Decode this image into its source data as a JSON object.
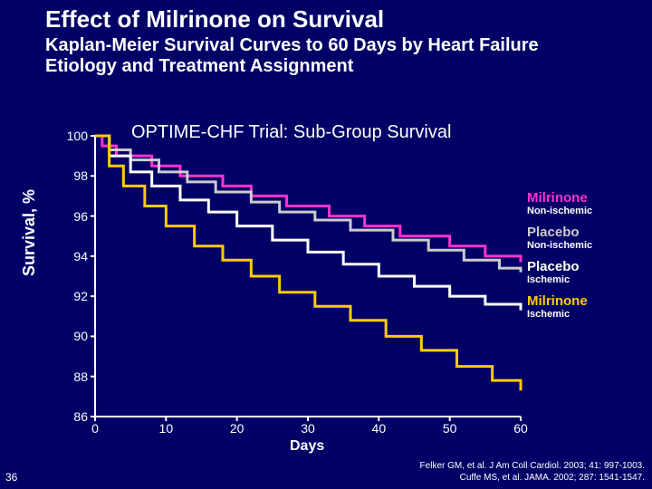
{
  "slide_number": "36",
  "title": "Effect of Milrinone on Survival",
  "subtitle": "Kaplan-Meier Survival Curves to 60 Days by Heart Failure Etiology and Treatment Assignment",
  "chart": {
    "type": "line-step",
    "title": "OPTIME-CHF Trial: Sub-Group Survival",
    "xlabel": "Days",
    "ylabel": "Survival, %",
    "xlim": [
      0,
      60
    ],
    "ylim": [
      86,
      100
    ],
    "xtick_step": 10,
    "ytick_step": 2,
    "xticks": [
      0,
      10,
      20,
      30,
      40,
      50,
      60
    ],
    "yticks": [
      86,
      88,
      90,
      92,
      94,
      96,
      98,
      100
    ],
    "background_color": "#000066",
    "axis_color": "#ffffff",
    "tick_fontsize": 14,
    "label_fontsize": 18,
    "title_fontsize": 20,
    "line_width": 3,
    "series": [
      {
        "id": "milrinone_nonischemic",
        "name": "Milrinone",
        "sub": "Non-ischemic",
        "color": "#ff33cc",
        "points": [
          [
            0,
            100
          ],
          [
            1,
            99.5
          ],
          [
            3,
            99.0
          ],
          [
            8,
            98.5
          ],
          [
            12,
            98.0
          ],
          [
            18,
            97.5
          ],
          [
            22,
            97.0
          ],
          [
            27,
            96.5
          ],
          [
            33,
            96.0
          ],
          [
            38,
            95.5
          ],
          [
            43,
            95.0
          ],
          [
            50,
            94.5
          ],
          [
            55,
            94.0
          ],
          [
            60,
            93.7
          ]
        ]
      },
      {
        "id": "placebo_nonischemic",
        "name": "Placebo",
        "sub": "Non-ischemic",
        "color": "#cccccc",
        "points": [
          [
            0,
            100
          ],
          [
            2,
            99.3
          ],
          [
            5,
            98.8
          ],
          [
            9,
            98.2
          ],
          [
            13,
            97.7
          ],
          [
            17,
            97.2
          ],
          [
            22,
            96.7
          ],
          [
            26,
            96.2
          ],
          [
            31,
            95.8
          ],
          [
            36,
            95.3
          ],
          [
            42,
            94.8
          ],
          [
            47,
            94.3
          ],
          [
            52,
            93.8
          ],
          [
            57,
            93.4
          ],
          [
            60,
            93.2
          ]
        ]
      },
      {
        "id": "placebo_ischemic",
        "name": "Placebo",
        "sub": "Ischemic",
        "color": "#ffffff",
        "points": [
          [
            0,
            100
          ],
          [
            2,
            99.0
          ],
          [
            5,
            98.2
          ],
          [
            8,
            97.5
          ],
          [
            12,
            96.8
          ],
          [
            16,
            96.2
          ],
          [
            20,
            95.5
          ],
          [
            25,
            94.8
          ],
          [
            30,
            94.2
          ],
          [
            35,
            93.6
          ],
          [
            40,
            93.0
          ],
          [
            45,
            92.5
          ],
          [
            50,
            92.0
          ],
          [
            55,
            91.6
          ],
          [
            60,
            91.3
          ]
        ]
      },
      {
        "id": "milrinone_ischemic",
        "name": "Milrinone",
        "sub": "Ischemic",
        "color": "#ffcc00",
        "points": [
          [
            0,
            100
          ],
          [
            2,
            98.5
          ],
          [
            4,
            97.5
          ],
          [
            7,
            96.5
          ],
          [
            10,
            95.5
          ],
          [
            14,
            94.5
          ],
          [
            18,
            93.8
          ],
          [
            22,
            93.0
          ],
          [
            26,
            92.2
          ],
          [
            31,
            91.5
          ],
          [
            36,
            90.8
          ],
          [
            41,
            90.0
          ],
          [
            46,
            89.3
          ],
          [
            51,
            88.5
          ],
          [
            56,
            87.8
          ],
          [
            60,
            87.3
          ]
        ]
      }
    ]
  },
  "legend": [
    {
      "name": "Milrinone",
      "sub": "Non-ischemic",
      "color": "#ff33cc"
    },
    {
      "name": "Placebo",
      "sub": "Non-ischemic",
      "color": "#cccccc"
    },
    {
      "name": "Placebo",
      "sub": "Ischemic",
      "color": "#ffffff"
    },
    {
      "name": "Milrinone",
      "sub": "Ischemic",
      "color": "#ffcc00"
    }
  ],
  "citations": [
    "Felker GM, et al. J Am Coll Cardiol. 2003; 41: 997-1003.",
    "Cuffe MS, et al. JAMA. 2002; 287: 1541-1547."
  ]
}
